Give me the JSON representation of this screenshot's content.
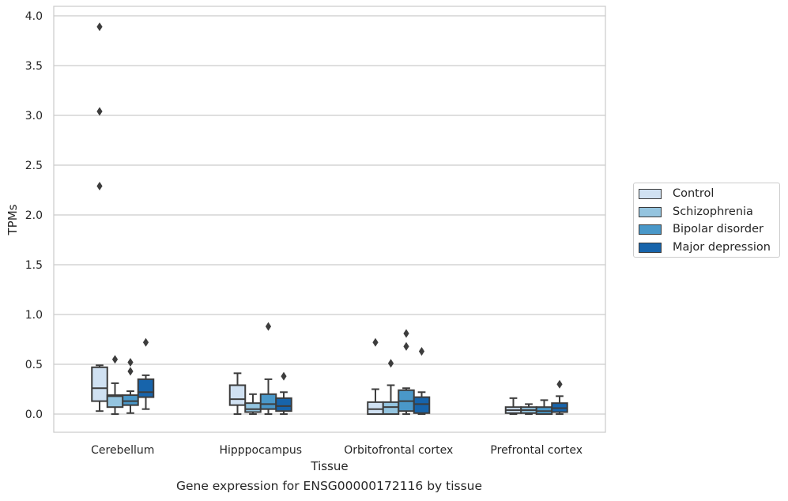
{
  "chart_data": {
    "type": "box",
    "caption": "Gene expression for ENSG00000172116 by tissue",
    "xlabel": "Tissue",
    "ylabel": "TPMs",
    "ylim": [
      -0.19,
      4.09
    ],
    "yticks": [
      0.0,
      0.5,
      1.0,
      1.5,
      2.0,
      2.5,
      3.0,
      3.5,
      4.0
    ],
    "ytick_labels": [
      "0.0",
      "0.5",
      "1.0",
      "1.5",
      "2.0",
      "2.5",
      "3.0",
      "3.5",
      "4.0"
    ],
    "grid": "horizontal",
    "legend_position": "right-center",
    "categories": [
      "Cerebellum",
      "Hipppocampus",
      "Orbitofrontal cortex",
      "Prefrontal cortex"
    ],
    "series": [
      {
        "name": "Control",
        "color": "#d0e1f2",
        "boxes": [
          {
            "whisker_low": 0.03,
            "q1": 0.13,
            "median": 0.26,
            "q3": 0.47,
            "whisker_high": 0.49,
            "outliers": [
              2.29,
              3.04,
              3.89
            ]
          },
          {
            "whisker_low": 0.0,
            "q1": 0.09,
            "median": 0.15,
            "q3": 0.29,
            "whisker_high": 0.41,
            "outliers": []
          },
          {
            "whisker_low": 0.0,
            "q1": 0.0,
            "median": 0.05,
            "q3": 0.12,
            "whisker_high": 0.25,
            "outliers": [
              0.72
            ]
          },
          {
            "whisker_low": 0.0,
            "q1": 0.01,
            "median": 0.04,
            "q3": 0.07,
            "whisker_high": 0.16,
            "outliers": []
          }
        ]
      },
      {
        "name": "Schizophrenia",
        "color": "#94c4df",
        "boxes": [
          {
            "whisker_low": 0.0,
            "q1": 0.07,
            "median": 0.18,
            "q3": 0.19,
            "whisker_high": 0.31,
            "outliers": [
              0.55
            ]
          },
          {
            "whisker_low": 0.0,
            "q1": 0.02,
            "median": 0.05,
            "q3": 0.11,
            "whisker_high": 0.2,
            "outliers": []
          },
          {
            "whisker_low": 0.0,
            "q1": 0.0,
            "median": 0.07,
            "q3": 0.12,
            "whisker_high": 0.29,
            "outliers": [
              0.51
            ]
          },
          {
            "whisker_low": 0.0,
            "q1": 0.01,
            "median": 0.04,
            "q3": 0.07,
            "whisker_high": 0.1,
            "outliers": []
          }
        ]
      },
      {
        "name": "Bipolar disorder",
        "color": "#4a98c9",
        "boxes": [
          {
            "whisker_low": 0.01,
            "q1": 0.09,
            "median": 0.13,
            "q3": 0.19,
            "whisker_high": 0.23,
            "outliers": [
              0.43,
              0.52
            ]
          },
          {
            "whisker_low": 0.0,
            "q1": 0.05,
            "median": 0.1,
            "q3": 0.2,
            "whisker_high": 0.35,
            "outliers": [
              0.88
            ]
          },
          {
            "whisker_low": 0.0,
            "q1": 0.03,
            "median": 0.13,
            "q3": 0.24,
            "whisker_high": 0.26,
            "outliers": [
              0.68,
              0.81
            ]
          },
          {
            "whisker_low": 0.0,
            "q1": 0.0,
            "median": 0.03,
            "q3": 0.07,
            "whisker_high": 0.14,
            "outliers": []
          }
        ]
      },
      {
        "name": "Major depression",
        "color": "#1764ab",
        "boxes": [
          {
            "whisker_low": 0.05,
            "q1": 0.17,
            "median": 0.22,
            "q3": 0.35,
            "whisker_high": 0.39,
            "outliers": [
              0.72
            ]
          },
          {
            "whisker_low": 0.0,
            "q1": 0.03,
            "median": 0.08,
            "q3": 0.16,
            "whisker_high": 0.22,
            "outliers": [
              0.38
            ]
          },
          {
            "whisker_low": 0.0,
            "q1": 0.01,
            "median": 0.1,
            "q3": 0.17,
            "whisker_high": 0.22,
            "outliers": [
              0.63
            ]
          },
          {
            "whisker_low": 0.0,
            "q1": 0.02,
            "median": 0.06,
            "q3": 0.11,
            "whisker_high": 0.18,
            "outliers": [
              0.3
            ]
          }
        ]
      }
    ]
  }
}
